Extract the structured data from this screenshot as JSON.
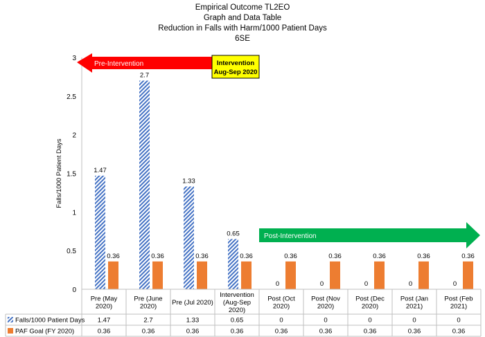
{
  "chart_data": {
    "type": "bar",
    "title_lines": [
      "Empirical Outcome TL2EO",
      "Graph and Data Table",
      "Reduction in Falls with Harm/1000 Patient Days",
      "6SE"
    ],
    "ylabel": "Falls/1000 Patient Days",
    "ylim": [
      0,
      3
    ],
    "y_ticks": [
      "0",
      "0.5",
      "1",
      "1.5",
      "2",
      "2.5",
      "3"
    ],
    "categories": [
      [
        "Pre (May",
        "2020)"
      ],
      [
        "Pre (June",
        "2020)"
      ],
      [
        "Pre (Jul 2020)"
      ],
      [
        "Intervention",
        "(Aug-Sep",
        "2020)"
      ],
      [
        "Post (Oct",
        "2020)"
      ],
      [
        "Post (Nov",
        "2020)"
      ],
      [
        "Post (Dec",
        "2020)"
      ],
      [
        "Post (Jan",
        "2021)"
      ],
      [
        "Post (Feb",
        "2021)"
      ]
    ],
    "series": [
      {
        "name": "Falls/1000 Patient Days",
        "pattern": "hatched",
        "color": "#4472c4",
        "values": [
          1.47,
          2.7,
          1.33,
          0.65,
          0,
          0,
          0,
          0,
          0
        ],
        "labels": [
          "1.47",
          "2.7",
          "1.33",
          "0.65",
          "0",
          "0",
          "0",
          "0",
          "0"
        ]
      },
      {
        "name": "PAF Goal (FY 2020)",
        "pattern": "solid",
        "color": "#ed7d31",
        "values": [
          0.36,
          0.36,
          0.36,
          0.36,
          0.36,
          0.36,
          0.36,
          0.36,
          0.36
        ],
        "labels": [
          "0.36",
          "0.36",
          "0.36",
          "0.36",
          "0.36",
          "0.36",
          "0.36",
          "0.36",
          "0.36"
        ]
      }
    ],
    "annotations": {
      "pre_arrow": {
        "text": "Pre-Intervention",
        "color": "#ff0000"
      },
      "intervention_box": {
        "lines": [
          "Intervention",
          "Aug-Sep 2020"
        ],
        "color": "#ffff00"
      },
      "post_arrow": {
        "text": "Post-Intervention",
        "color": "#00b050"
      }
    },
    "grid": false,
    "legend": "data-table"
  }
}
